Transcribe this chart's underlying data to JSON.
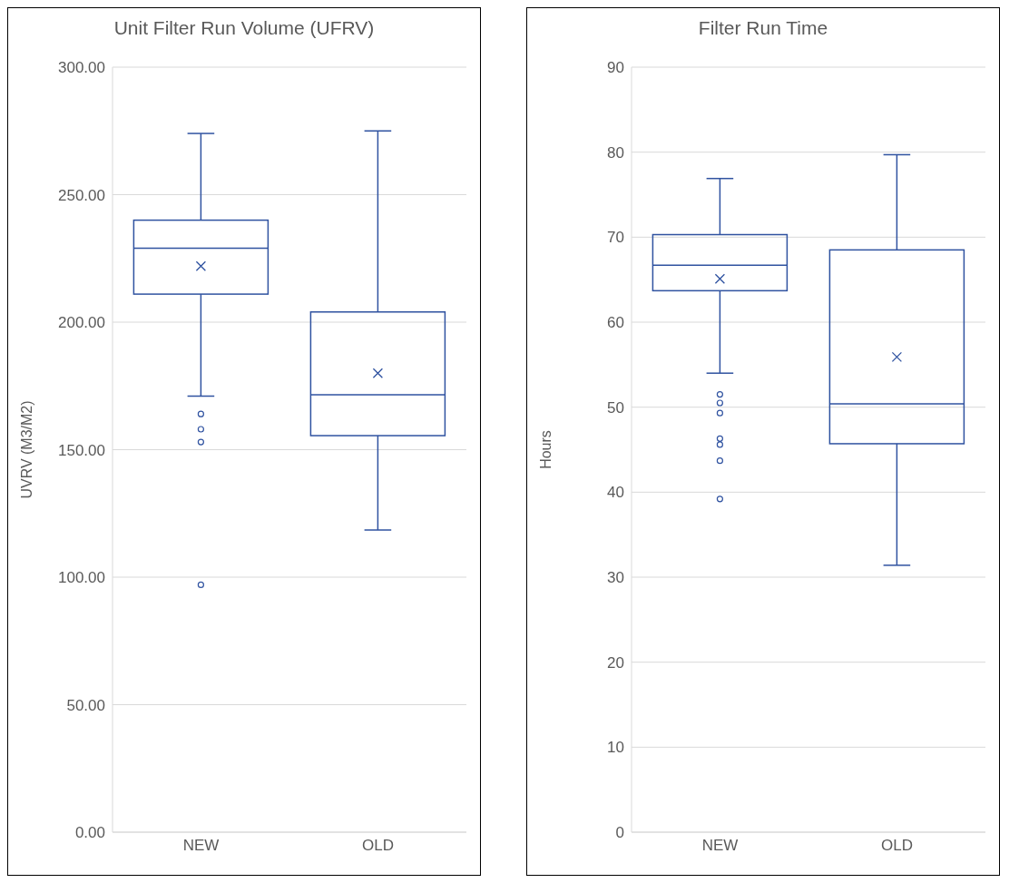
{
  "chart_data": [
    {
      "type": "box",
      "title": "Unit Filter Run Volume (UFRV)",
      "ylabel": "UVRV (M3/M2)",
      "categories": [
        "NEW",
        "OLD"
      ],
      "color": "#2f52a0",
      "grid": "y",
      "ylim": [
        0,
        300
      ],
      "yticks": [
        {
          "value": 0,
          "label": "0.00"
        },
        {
          "value": 50,
          "label": "50.00"
        },
        {
          "value": 100,
          "label": "100.00"
        },
        {
          "value": 150,
          "label": "150.00"
        },
        {
          "value": 200,
          "label": "200.00"
        },
        {
          "value": 250,
          "label": "250.00"
        },
        {
          "value": 300,
          "label": "300.00"
        }
      ],
      "boxes": [
        {
          "low": 171,
          "q1": 211,
          "median": 229,
          "q3": 240,
          "high": 274,
          "mean": 222,
          "outliers": [
            164,
            158,
            153,
            97
          ]
        },
        {
          "low": 118.5,
          "q1": 155.5,
          "median": 171.5,
          "q3": 204,
          "high": 275,
          "mean": 180
        }
      ]
    },
    {
      "type": "box",
      "title": "Filter Run Time",
      "ylabel": "Hours",
      "categories": [
        "NEW",
        "OLD"
      ],
      "color": "#2f52a0",
      "grid": "y",
      "ylim": [
        0,
        90
      ],
      "yticks": [
        0,
        10,
        20,
        30,
        40,
        50,
        60,
        70,
        80,
        90
      ],
      "boxes": [
        {
          "low": 54,
          "q1": 63.7,
          "median": 66.7,
          "q3": 70.3,
          "high": 76.9,
          "mean": 65.1,
          "outliers": [
            51.5,
            50.5,
            49.3,
            46.3,
            45.6,
            43.7,
            39.2
          ]
        },
        {
          "low": 31.4,
          "q1": 45.7,
          "median": 50.4,
          "q3": 68.5,
          "high": 79.7,
          "mean": 55.9
        }
      ]
    }
  ]
}
